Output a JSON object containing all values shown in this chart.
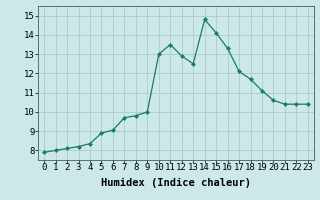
{
  "x": [
    0,
    1,
    2,
    3,
    4,
    5,
    6,
    7,
    8,
    9,
    10,
    11,
    12,
    13,
    14,
    15,
    16,
    17,
    18,
    19,
    20,
    21,
    22,
    23
  ],
  "y": [
    7.9,
    8.0,
    8.1,
    8.2,
    8.35,
    8.9,
    9.05,
    9.7,
    9.8,
    10.0,
    13.0,
    13.5,
    12.9,
    12.5,
    14.8,
    14.1,
    13.3,
    12.1,
    11.7,
    11.1,
    10.6,
    10.4,
    10.4,
    10.4
  ],
  "xlabel": "Humidex (Indice chaleur)",
  "ylabel": "",
  "ylim": [
    7.5,
    15.5
  ],
  "xlim": [
    -0.5,
    23.5
  ],
  "yticks": [
    8,
    9,
    10,
    11,
    12,
    13,
    14,
    15
  ],
  "xticks": [
    0,
    1,
    2,
    3,
    4,
    5,
    6,
    7,
    8,
    9,
    10,
    11,
    12,
    13,
    14,
    15,
    16,
    17,
    18,
    19,
    20,
    21,
    22,
    23
  ],
  "xtick_labels": [
    "0",
    "1",
    "2",
    "3",
    "4",
    "5",
    "6",
    "7",
    "8",
    "9",
    "10",
    "11",
    "12",
    "13",
    "14",
    "15",
    "16",
    "17",
    "18",
    "19",
    "20",
    "21",
    "22",
    "23"
  ],
  "line_color": "#1a7a6e",
  "marker": "D",
  "marker_size": 2.0,
  "bg_color": "#cce8e8",
  "grid_color": "#b0d0d0",
  "axis_fontsize": 7.5,
  "tick_fontsize": 6.5
}
